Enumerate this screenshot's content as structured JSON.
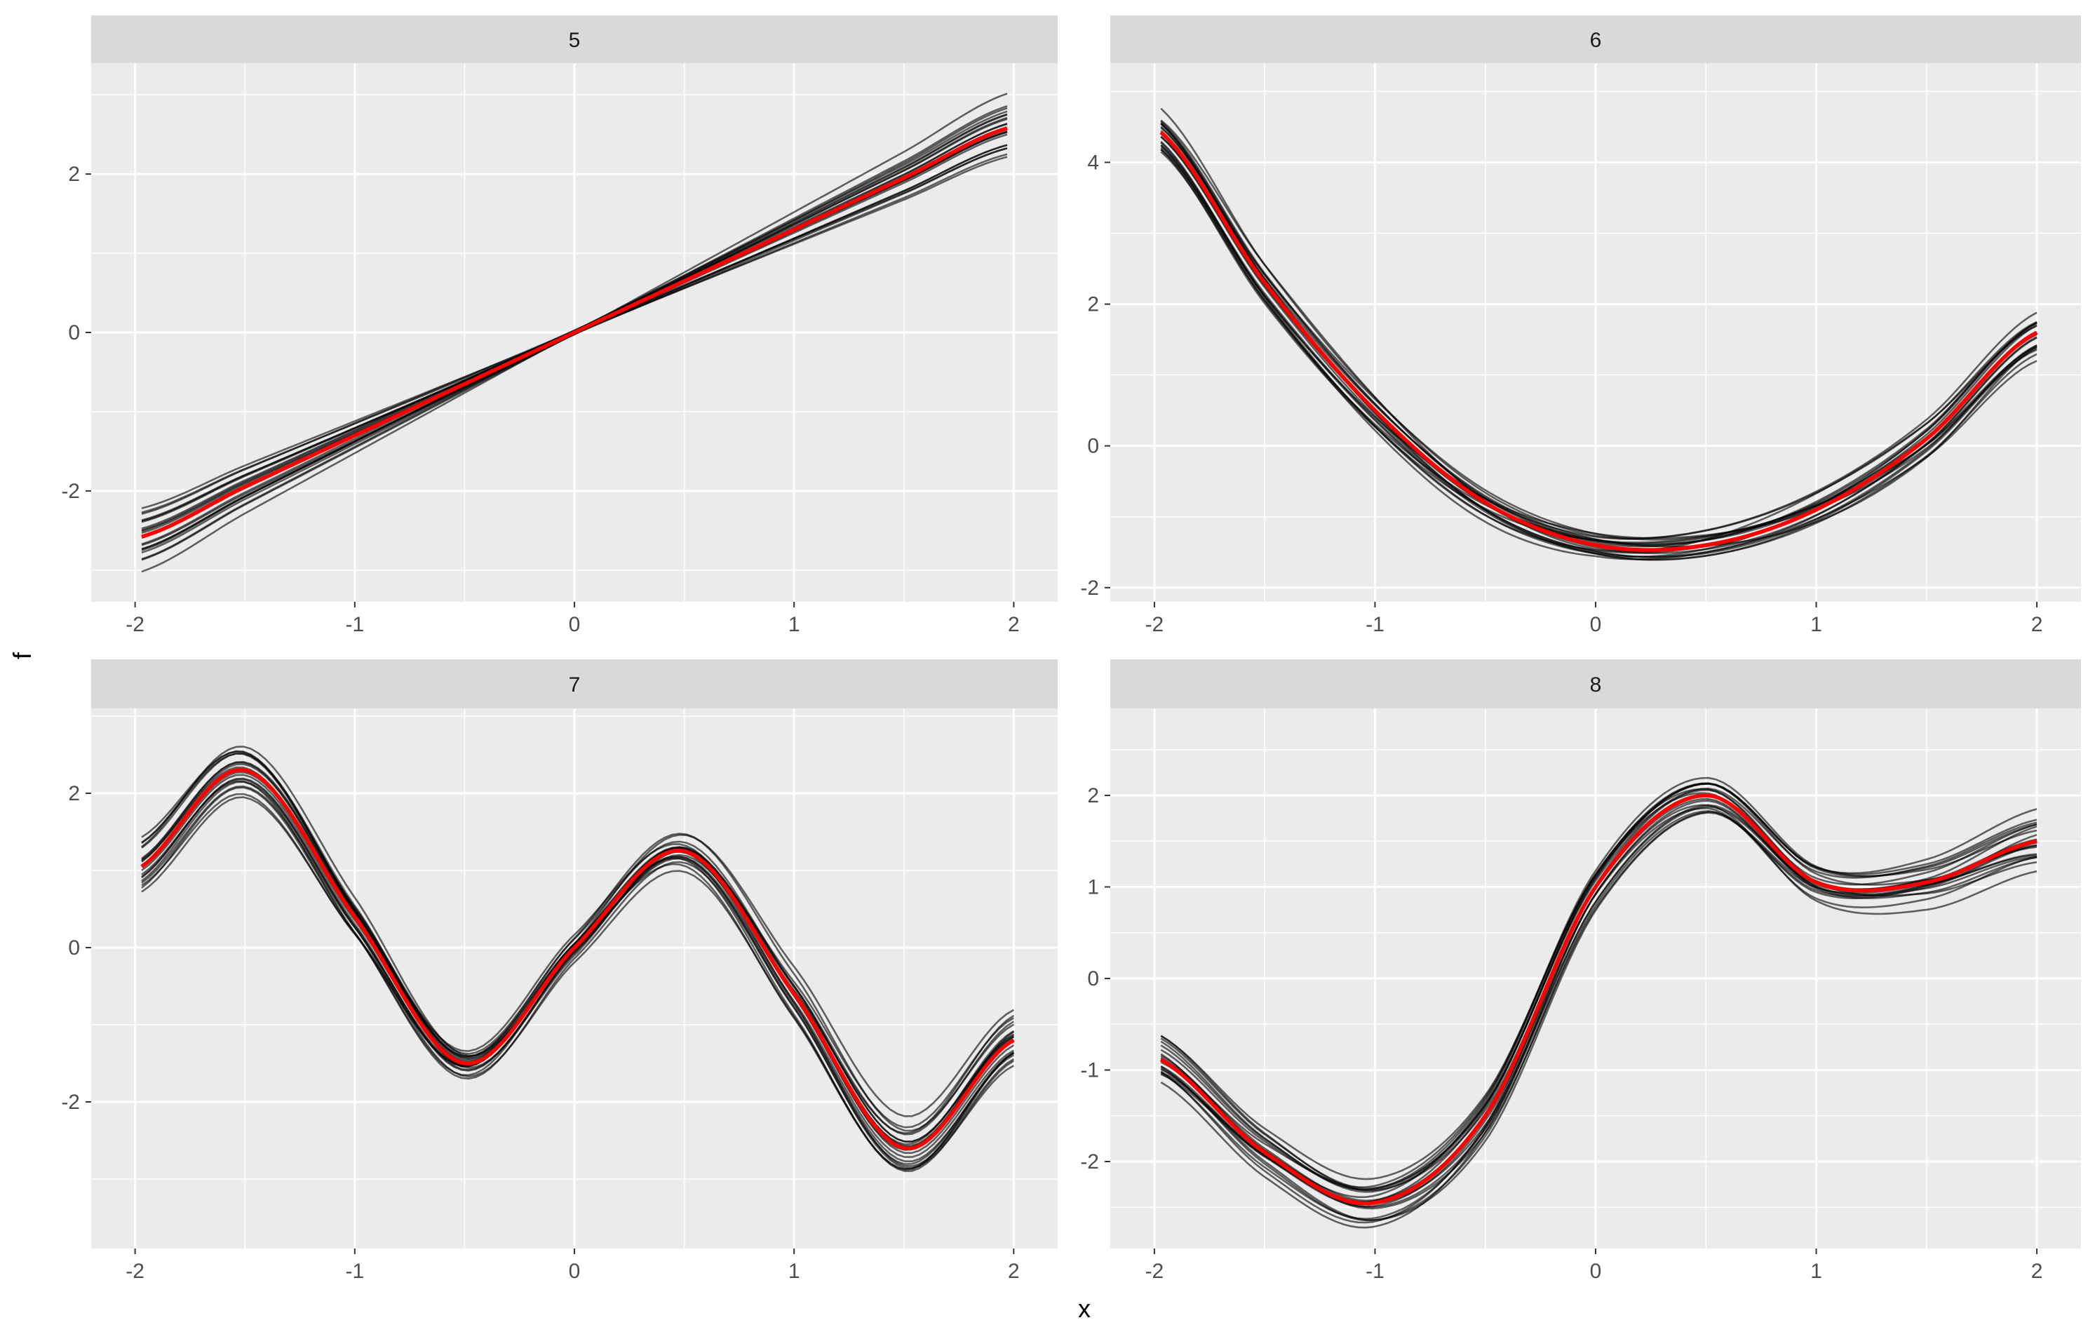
{
  "axes": {
    "xlabel": "x",
    "ylabel": "f"
  },
  "colors": {
    "panel_background": "#EBEBEB",
    "strip_background": "#D9D9D9",
    "grid": "#FFFFFF",
    "sample_lines": "#000000",
    "mean_line": "#FF0000"
  },
  "chart_data": [
    {
      "type": "line",
      "facet": "5",
      "x_ticks": [
        "-2",
        "-1",
        "0",
        "1",
        "2"
      ],
      "y_ticks": [
        "-2",
        "0",
        "2"
      ],
      "xlim": [
        -2.2,
        2.2
      ],
      "ylim": [
        -3.4,
        3.4
      ],
      "x_tick_values": [
        -2,
        -1,
        0,
        1,
        2
      ],
      "y_tick_values": [
        -2,
        0,
        2
      ],
      "mean_function": "linear",
      "x": [
        -2,
        -1.5,
        -1,
        -0.5,
        0,
        0.5,
        1,
        1.5,
        2
      ],
      "mean": [
        -2.6,
        -1.95,
        -1.3,
        -0.65,
        0,
        0.65,
        1.3,
        1.95,
        2.6
      ],
      "samples": 20,
      "spread": 0.3
    },
    {
      "type": "line",
      "facet": "6",
      "x_ticks": [
        "-2",
        "-1",
        "0",
        "1",
        "2"
      ],
      "y_ticks": [
        "-2",
        "0",
        "2",
        "4"
      ],
      "xlim": [
        -2.2,
        2.2
      ],
      "ylim": [
        -2.2,
        5.4
      ],
      "x_tick_values": [
        -2,
        -1,
        0,
        1,
        2
      ],
      "y_tick_values": [
        -2,
        0,
        2,
        4
      ],
      "mean_function": "quadratic",
      "x": [
        -2,
        -1.5,
        -1,
        -0.5,
        0,
        0.5,
        1,
        1.5,
        2
      ],
      "mean": [
        4.5,
        2.3,
        0.5,
        -0.8,
        -1.4,
        -1.4,
        -0.9,
        0.1,
        1.6
      ],
      "samples": 20,
      "spread": 0.35
    },
    {
      "type": "line",
      "facet": "7",
      "x_ticks": [
        "-2",
        "-1",
        "0",
        "1",
        "2"
      ],
      "y_ticks": [
        "-2",
        "0",
        "2"
      ],
      "xlim": [
        -2.2,
        2.2
      ],
      "ylim": [
        -3.9,
        3.1
      ],
      "x_tick_values": [
        -2,
        -1,
        0,
        1,
        2
      ],
      "y_tick_values": [
        -2,
        0,
        2
      ],
      "mean_function": "sine",
      "x": [
        -2,
        -1.5,
        -1,
        -0.5,
        0,
        0.5,
        1,
        1.5,
        2
      ],
      "mean": [
        1.0,
        2.3,
        0.4,
        -1.5,
        0.0,
        1.25,
        -0.6,
        -2.6,
        -1.2
      ],
      "samples": 20,
      "spread": 0.3
    },
    {
      "type": "line",
      "facet": "8",
      "x_ticks": [
        "-2",
        "-1",
        "0",
        "1",
        "2"
      ],
      "y_ticks": [
        "-2",
        "-1",
        "0",
        "1",
        "2"
      ],
      "xlim": [
        -2.2,
        2.2
      ],
      "ylim": [
        -2.95,
        2.95
      ],
      "x_tick_values": [
        -2,
        -1,
        0,
        1,
        2
      ],
      "y_tick_values": [
        -2,
        -1,
        0,
        1,
        2
      ],
      "mean_function": "logistic-bump",
      "x": [
        -2,
        -1.5,
        -1,
        -0.5,
        0,
        0.5,
        1,
        1.5,
        2
      ],
      "mean": [
        -0.85,
        -1.9,
        -2.45,
        -1.5,
        1.0,
        2.0,
        1.05,
        1.05,
        1.5
      ],
      "samples": 20,
      "spread": 0.3
    }
  ]
}
